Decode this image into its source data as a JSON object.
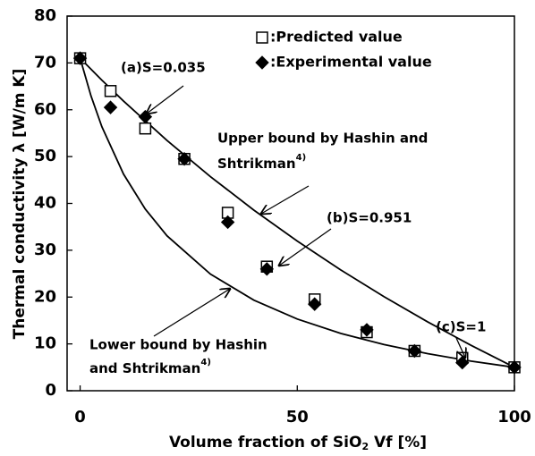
{
  "chart_data": {
    "type": "scatter",
    "ylabel": "Thermal conductivity λ [W/m K]",
    "xlabel": [
      "Volume fraction of SiO",
      "2",
      " Vf [%]"
    ],
    "xlim": [
      -3,
      100
    ],
    "xticks": [
      0,
      50,
      100
    ],
    "ylim": [
      0,
      80
    ],
    "yticks": [
      0,
      10,
      20,
      30,
      40,
      50,
      60,
      70,
      80
    ],
    "series": [
      {
        "name": ":Predicted value",
        "marker": "square",
        "color": "#000000",
        "x": [
          0,
          7,
          15,
          24,
          34,
          43,
          54,
          66,
          77,
          88,
          100
        ],
        "values": [
          71,
          64,
          56,
          49.5,
          38,
          26.5,
          19.5,
          12.5,
          8.5,
          7,
          5
        ]
      },
      {
        "name": ":Experimental value",
        "marker": "diamond",
        "color": "#000000",
        "x": [
          0,
          7,
          15,
          24,
          34,
          43,
          54,
          66,
          77,
          88,
          100
        ],
        "values": [
          71,
          60.5,
          58.5,
          49.5,
          36,
          26,
          18.5,
          13,
          8.5,
          6,
          5
        ]
      }
    ],
    "curves": [
      {
        "x": [
          0,
          5,
          10,
          20,
          30,
          40,
          50,
          60,
          70,
          80,
          90,
          100
        ],
        "values": [
          71,
          66.32,
          61.85,
          53.45,
          45.72,
          38.57,
          31.95,
          25.8,
          20.07,
          14.71,
          9.7,
          5
        ]
      },
      {
        "x": [
          0,
          2.5,
          5,
          10,
          15,
          20,
          30,
          40,
          50,
          60,
          70,
          80,
          90,
          100
        ],
        "values": [
          71,
          62.97,
          56.39,
          46.25,
          38.79,
          33.09,
          24.91,
          19.35,
          15.31,
          12.25,
          9.85,
          7.92,
          6.33,
          5
        ]
      }
    ],
    "annotations": {
      "a": "(a)S=0.035",
      "b": "(b)S=0.951",
      "c": "(c)S=1",
      "upper": [
        "Upper bound by Hashin and",
        "Shtrikman",
        "4)"
      ],
      "lower": [
        "Lower bound by Hashin",
        "and Shtrikman",
        "4)"
      ]
    }
  }
}
